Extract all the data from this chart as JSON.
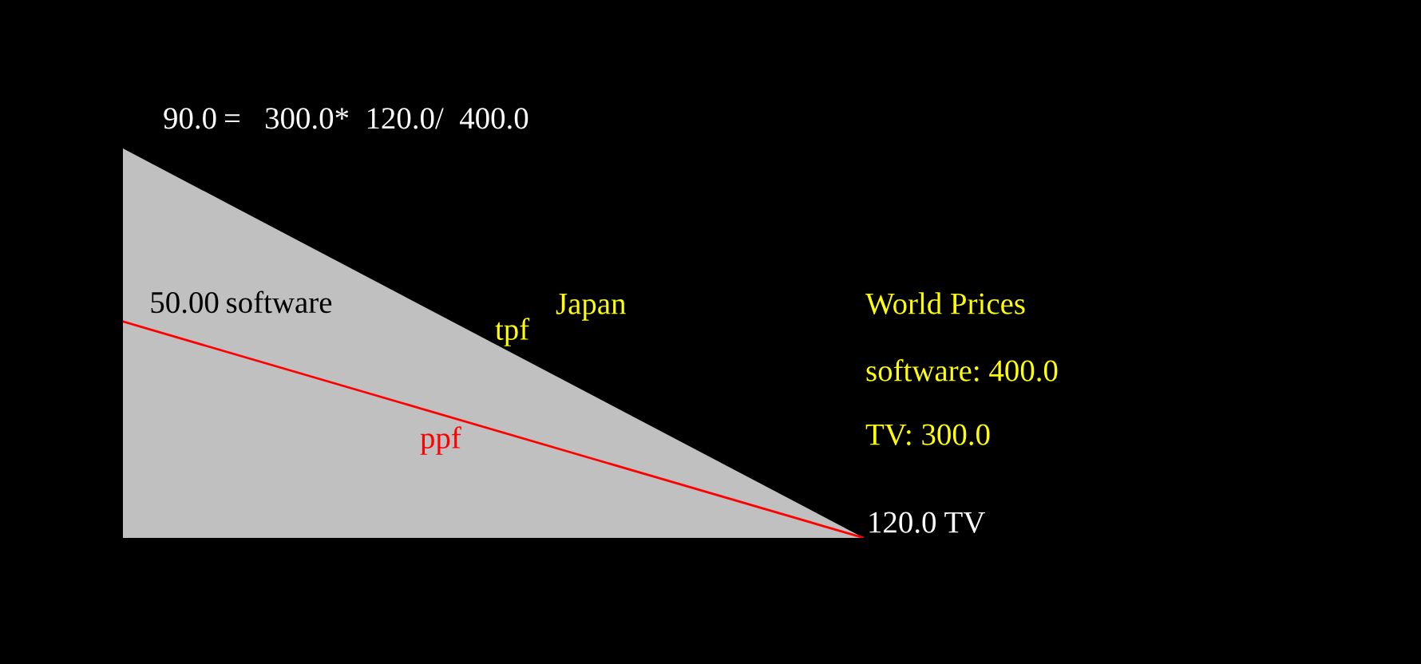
{
  "chart_data": {
    "type": "area",
    "categories": [
      null,
      null
    ],
    "series": [
      {
        "type": "area",
        "color": "#c0c0c0",
        "values": [
          90,
          0
        ],
        "value_labels": [
          "90.0",
          null
        ]
      },
      {
        "type": "line",
        "color": "#ff0000",
        "values": [
          50,
          0
        ],
        "value_labels": [
          "50.00",
          null
        ]
      }
    ],
    "annotations": [
      "=   300.0*  120.0/  400.0",
      "software",
      "120.0 TV",
      "tpf",
      "ppf",
      "Japan",
      "World Prices",
      "software: 400.0",
      "TV: 300.0"
    ]
  }
}
